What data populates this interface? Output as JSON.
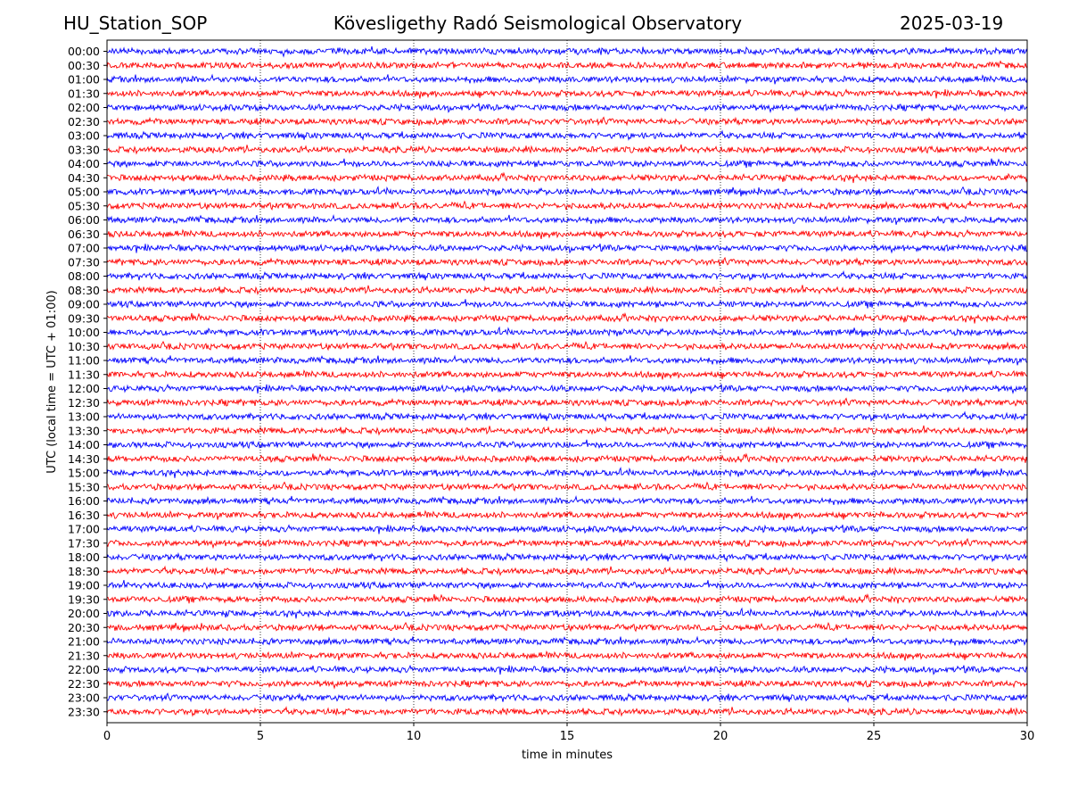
{
  "header": {
    "station": "HU_Station_SOP",
    "observatory": "Köveslige­thy Radó Seismological Observatory",
    "date": "2025-03-19"
  },
  "chart_data": {
    "type": "line",
    "title": "Köveslige­thy Radó Seismological Observatory",
    "xlabel": "time in minutes",
    "ylabel": "UTC (local time = UTC + 01:00)",
    "xlim": [
      0,
      30
    ],
    "xticks": [
      0,
      5,
      10,
      15,
      20,
      25,
      30
    ],
    "grid": "vertical dotted",
    "colors": [
      "#0000ff",
      "#ff0000"
    ],
    "rows": [
      "00:00",
      "00:30",
      "01:00",
      "01:30",
      "02:00",
      "02:30",
      "03:00",
      "03:30",
      "04:00",
      "04:30",
      "05:00",
      "05:30",
      "06:00",
      "06:30",
      "07:00",
      "07:30",
      "08:00",
      "08:30",
      "09:00",
      "09:30",
      "10:00",
      "10:30",
      "11:00",
      "11:30",
      "12:00",
      "12:30",
      "13:00",
      "13:30",
      "14:00",
      "14:30",
      "15:00",
      "15:30",
      "16:00",
      "16:30",
      "17:00",
      "17:30",
      "18:00",
      "18:30",
      "19:00",
      "19:30",
      "20:00",
      "20:30",
      "21:00",
      "21:30",
      "22:00",
      "22:30",
      "23:00",
      "23:30"
    ]
  }
}
